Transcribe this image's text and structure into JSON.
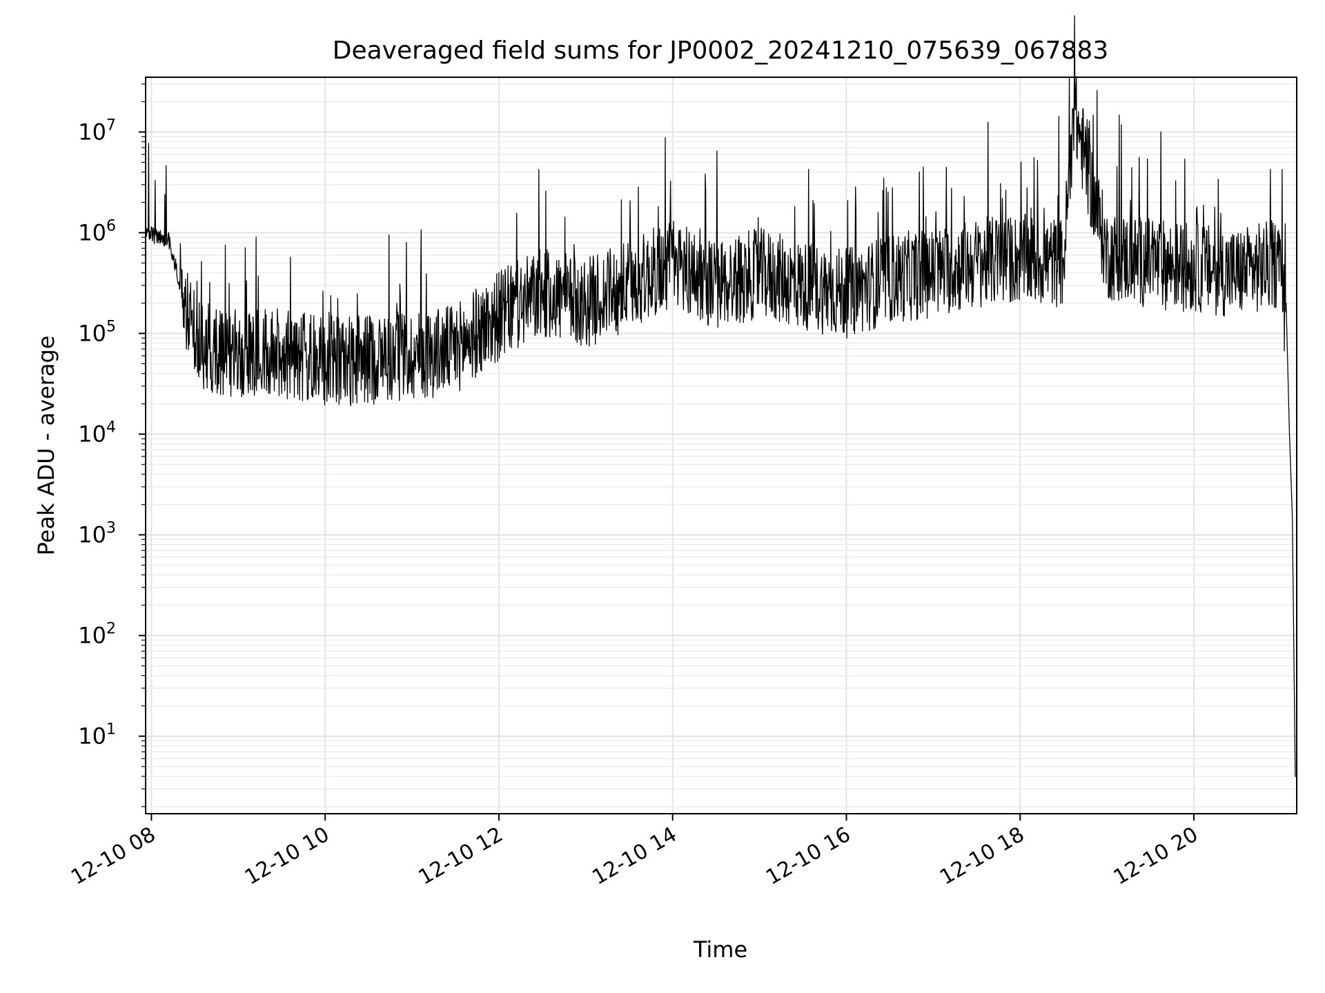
{
  "chart_data": {
    "type": "line",
    "title": "Deaveraged field sums for JP0002_20241210_075639_067883",
    "xlabel": "Time",
    "ylabel": "Peak ADU - average",
    "xlim": [
      "2024-12-10 07:56",
      "2024-12-10 21:11"
    ],
    "ylim": [
      1.7,
      35000000
    ],
    "yscale": "log",
    "grid": true,
    "x_ticks": [
      "12-10 08",
      "12-10 10",
      "12-10 12",
      "12-10 14",
      "12-10 16",
      "12-10 18",
      "12-10 20"
    ],
    "y_ticks": [
      {
        "base": "10",
        "exp": "1",
        "value": 10
      },
      {
        "base": "10",
        "exp": "2",
        "value": 100
      },
      {
        "base": "10",
        "exp": "3",
        "value": 1000
      },
      {
        "base": "10",
        "exp": "4",
        "value": 10000
      },
      {
        "base": "10",
        "exp": "5",
        "value": 100000
      },
      {
        "base": "10",
        "exp": "6",
        "value": 1000000
      },
      {
        "base": "10",
        "exp": "7",
        "value": 10000000
      }
    ],
    "line_color": "#000000",
    "series": [
      {
        "x": [
          "2024-12-10 07:56",
          "2024-12-10 08:05",
          "2024-12-10 08:12",
          "2024-12-10 08:20",
          "2024-12-10 08:25",
          "2024-12-10 08:30",
          "2024-12-10 08:40",
          "2024-12-10 09:00",
          "2024-12-10 09:30",
          "2024-12-10 10:00",
          "2024-12-10 10:30",
          "2024-12-10 11:00",
          "2024-12-10 11:30",
          "2024-12-10 12:00",
          "2024-12-10 12:30",
          "2024-12-10 13:00",
          "2024-12-10 13:30",
          "2024-12-10 14:00",
          "2024-12-10 14:30",
          "2024-12-10 15:00",
          "2024-12-10 15:30",
          "2024-12-10 16:00",
          "2024-12-10 16:30",
          "2024-12-10 17:00",
          "2024-12-10 17:30",
          "2024-12-10 18:00",
          "2024-12-10 18:30",
          "2024-12-10 18:37",
          "2024-12-10 19:00",
          "2024-12-10 19:30",
          "2024-12-10 20:00",
          "2024-12-10 20:30",
          "2024-12-10 21:00",
          "2024-12-10 21:04",
          "2024-12-10 21:06",
          "2024-12-10 21:08",
          "2024-12-10 21:10"
        ],
        "y": [
          1000000,
          900000,
          850000,
          300000,
          150000,
          90000,
          70000,
          60000,
          65000,
          50000,
          55000,
          60000,
          70000,
          150000,
          250000,
          200000,
          300000,
          500000,
          300000,
          400000,
          300000,
          250000,
          350000,
          400000,
          500000,
          550000,
          500000,
          17000000,
          600000,
          500000,
          450000,
          400000,
          500000,
          100000,
          10000,
          1500,
          4
        ]
      }
    ]
  }
}
